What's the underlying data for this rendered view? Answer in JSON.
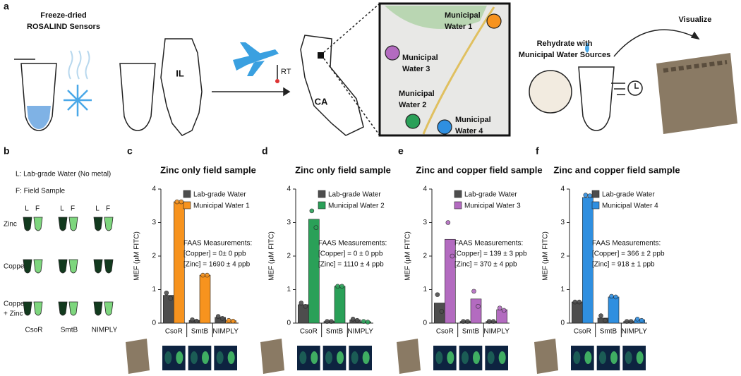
{
  "panel_a": {
    "letter": "a",
    "sensors_title": [
      "Freeze-dried",
      "ROSALIND Sensors"
    ],
    "state_il": "IL",
    "temp": "RT",
    "state_ca": "CA",
    "map_sites": [
      {
        "label": [
          "Municipal",
          "Water 1"
        ],
        "color": "#f7931e"
      },
      {
        "label": [
          "Municipal",
          "Water 3"
        ],
        "color": "#b36bc0"
      },
      {
        "label": [
          "Municipal",
          "Water 2"
        ],
        "color": "#2aa058"
      },
      {
        "label": [
          "Municipal",
          "Water 4"
        ],
        "color": "#2f8fe0"
      }
    ],
    "rehydrate": [
      "Rehydrate with",
      "Municipal Water Sources"
    ],
    "visualize": "Visualize"
  },
  "panel_b": {
    "letter": "b",
    "legend": [
      "L: Lab-grade Water (No metal)",
      "F: Field Sample"
    ],
    "column_heads": [
      "L",
      "F",
      "L",
      "F",
      "L",
      "F"
    ],
    "rows": [
      [
        "Zinc"
      ],
      [
        "Copper"
      ],
      [
        "Copper",
        "+ Zinc"
      ]
    ],
    "sensors": [
      "CsoR",
      "SmtB",
      "NIMPLY"
    ]
  },
  "chart_data": [
    {
      "letter": "c",
      "type": "bar",
      "title": "Zinc only field sample",
      "ylabel": "MEF (µM FITC)",
      "categories": [
        "CsoR",
        "SmtB",
        "NIMPLY"
      ],
      "ylim": [
        0,
        4
      ],
      "yticks": [
        0,
        1,
        2,
        3,
        4
      ],
      "series": [
        {
          "name": "Lab-grade Water",
          "color": "#4d4d4d",
          "values": [
            0.83,
            0.08,
            0.17
          ],
          "replicates": [
            [
              0.9,
              0.74
            ],
            [
              0.1,
              0.06
            ],
            [
              0.2,
              0.14
            ]
          ]
        },
        {
          "name": "Municipal Water 1",
          "color": "#f7931e",
          "values": [
            3.62,
            1.43,
            0.07
          ],
          "replicates": [
            [
              3.62,
              3.62
            ],
            [
              1.43,
              1.43
            ],
            [
              0.08,
              0.06
            ]
          ]
        }
      ],
      "annotation": [
        "FAAS Measurements:",
        "[Copper] = 0± 0 ppb",
        "[Zinc] = 1690 ± 4 ppb"
      ]
    },
    {
      "letter": "d",
      "type": "bar",
      "title": "Zinc only field sample",
      "ylabel": "MEF (µM FITC)",
      "categories": [
        "CsoR",
        "SmtB",
        "NIMPLY"
      ],
      "ylim": [
        0,
        4
      ],
      "yticks": [
        0,
        1,
        2,
        3,
        4
      ],
      "series": [
        {
          "name": "Lab-grade Water",
          "color": "#4d4d4d",
          "values": [
            0.55,
            0.05,
            0.1
          ],
          "replicates": [
            [
              0.6,
              0.5
            ],
            [
              0.05,
              0.05
            ],
            [
              0.12,
              0.08
            ]
          ]
        },
        {
          "name": "Municipal Water 2",
          "color": "#2aa058",
          "values": [
            3.1,
            1.1,
            0.04
          ],
          "replicates": [
            [
              3.35,
              2.85
            ],
            [
              1.1,
              1.1
            ],
            [
              0.05,
              0.03
            ]
          ]
        }
      ],
      "annotation": [
        "FAAS Measurements:",
        "[Copper] = 0 ± 0 ppb",
        "[Zinc] = 1110 ± 4 ppb"
      ]
    },
    {
      "letter": "e",
      "type": "bar",
      "title": "Zinc and copper field sample",
      "ylabel": "MEF (µM FITC)",
      "categories": [
        "CsoR",
        "SmtB",
        "NIMPLY"
      ],
      "ylim": [
        0,
        4
      ],
      "yticks": [
        0,
        1,
        2,
        3,
        4
      ],
      "series": [
        {
          "name": "Lab-grade Water",
          "color": "#4d4d4d",
          "values": [
            0.6,
            0.05,
            0.05
          ],
          "replicates": [
            [
              0.85,
              0.35
            ],
            [
              0.05,
              0.05
            ],
            [
              0.05,
              0.05
            ]
          ]
        },
        {
          "name": "Municipal Water 3",
          "color": "#b36bc0",
          "values": [
            2.5,
            0.72,
            0.4
          ],
          "replicates": [
            [
              3.0,
              2.0
            ],
            [
              0.95,
              0.5
            ],
            [
              0.45,
              0.38
            ]
          ]
        }
      ],
      "annotation": [
        "FAAS Measurements:",
        "[Copper] = 139 ± 3 ppb",
        "[Zinc] = 370 ± 4 ppb"
      ]
    },
    {
      "letter": "f",
      "type": "bar",
      "title": "Zinc and copper field sample",
      "ylabel": "MEF (µM FITC)",
      "categories": [
        "CsoR",
        "SmtB",
        "NIMPLY"
      ],
      "ylim": [
        0,
        4
      ],
      "yticks": [
        0,
        1,
        2,
        3,
        4
      ],
      "series": [
        {
          "name": "Lab-grade Water",
          "color": "#4d4d4d",
          "values": [
            0.63,
            0.15,
            0.05
          ],
          "replicates": [
            [
              0.63,
              0.63
            ],
            [
              0.22,
              0.08
            ],
            [
              0.05,
              0.05
            ]
          ]
        },
        {
          "name": "Municipal Water 4",
          "color": "#2f8fe0",
          "values": [
            3.75,
            0.78,
            0.1
          ],
          "replicates": [
            [
              3.82,
              3.8
            ],
            [
              0.8,
              0.78
            ],
            [
              0.12,
              0.08
            ]
          ]
        }
      ],
      "annotation": [
        "FAAS Measurements:",
        "[Copper] = 366 ± 2 ppb",
        "[Zinc] = 918 ± 1 ppb"
      ]
    }
  ]
}
